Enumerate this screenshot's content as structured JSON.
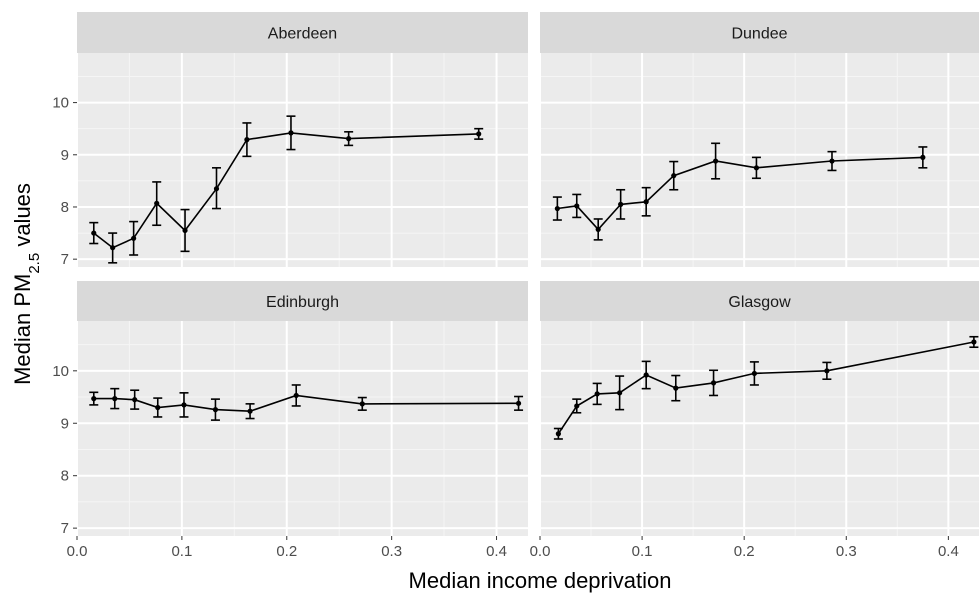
{
  "chart_data": {
    "type": "line",
    "style": "faceted line chart with error bars, ggplot2 grey theme",
    "xlabel": "Median income deprivation",
    "ylabel": {
      "prefix": "Median PM",
      "subscript": "2.5",
      "suffix": " values"
    },
    "xlim": [
      0,
      0.43
    ],
    "x_ticks": [
      0.0,
      0.1,
      0.2,
      0.3,
      0.4
    ],
    "x_tick_labels": [
      "0.0",
      "0.1",
      "0.2",
      "0.3",
      "0.4"
    ],
    "rows": [
      {
        "ylim": [
          6.85,
          10.95
        ],
        "y_ticks": [
          7,
          8,
          9,
          10
        ],
        "y_tick_labels": [
          "7",
          "8",
          "9",
          "10"
        ]
      },
      {
        "ylim": [
          6.85,
          10.95
        ],
        "y_ticks": [
          7,
          8,
          9,
          10
        ],
        "y_tick_labels": [
          "7",
          "8",
          "9",
          "10"
        ]
      }
    ],
    "grid": true,
    "panels": [
      {
        "title": "Aberdeen",
        "x": [
          0.016,
          0.034,
          0.054,
          0.076,
          0.103,
          0.133,
          0.162,
          0.204,
          0.259,
          0.383
        ],
        "y": [
          7.5,
          7.22,
          7.4,
          8.07,
          7.55,
          8.35,
          9.29,
          9.42,
          9.31,
          9.4
        ],
        "lower": [
          7.3,
          6.93,
          7.08,
          7.65,
          7.15,
          7.97,
          8.97,
          9.1,
          9.18,
          9.3
        ],
        "upper": [
          7.7,
          7.5,
          7.72,
          8.48,
          7.95,
          8.75,
          9.61,
          9.74,
          9.44,
          9.5
        ]
      },
      {
        "title": "Dundee",
        "x": [
          0.017,
          0.036,
          0.057,
          0.079,
          0.104,
          0.131,
          0.172,
          0.212,
          0.286,
          0.375
        ],
        "y": [
          7.97,
          8.02,
          7.57,
          8.05,
          8.1,
          8.6,
          8.88,
          8.75,
          8.88,
          8.95
        ],
        "lower": [
          7.75,
          7.8,
          7.37,
          7.77,
          7.83,
          8.33,
          8.54,
          8.55,
          8.7,
          8.75
        ],
        "upper": [
          8.19,
          8.24,
          7.77,
          8.33,
          8.37,
          8.87,
          9.22,
          8.95,
          9.06,
          9.15
        ]
      },
      {
        "title": "Edinburgh",
        "x": [
          0.016,
          0.036,
          0.055,
          0.077,
          0.102,
          0.132,
          0.165,
          0.209,
          0.272,
          0.421
        ],
        "y": [
          9.47,
          9.47,
          9.45,
          9.3,
          9.35,
          9.26,
          9.23,
          9.53,
          9.37,
          9.38
        ],
        "lower": [
          9.35,
          9.28,
          9.27,
          9.12,
          9.12,
          9.06,
          9.09,
          9.33,
          9.25,
          9.25
        ],
        "upper": [
          9.59,
          9.66,
          9.63,
          9.48,
          9.58,
          9.46,
          9.37,
          9.73,
          9.49,
          9.51
        ]
      },
      {
        "title": "Glasgow",
        "x": [
          0.018,
          0.036,
          0.056,
          0.078,
          0.104,
          0.133,
          0.17,
          0.21,
          0.281,
          0.425
        ],
        "y": [
          8.8,
          9.33,
          9.56,
          9.58,
          9.92,
          9.67,
          9.77,
          9.95,
          10.0,
          10.55
        ],
        "lower": [
          8.7,
          9.2,
          9.36,
          9.26,
          9.66,
          9.43,
          9.53,
          9.73,
          9.84,
          10.45
        ],
        "upper": [
          8.9,
          9.46,
          9.76,
          9.9,
          10.18,
          9.91,
          10.01,
          10.17,
          10.16,
          10.65
        ]
      }
    ]
  },
  "colors": {
    "panel_background": "#ebebeb",
    "strip_background": "#d9d9d9",
    "grid_major": "#ffffff",
    "grid_minor": "#f5f5f5",
    "line": "#000000",
    "tick_text": "#4d4d4d"
  }
}
